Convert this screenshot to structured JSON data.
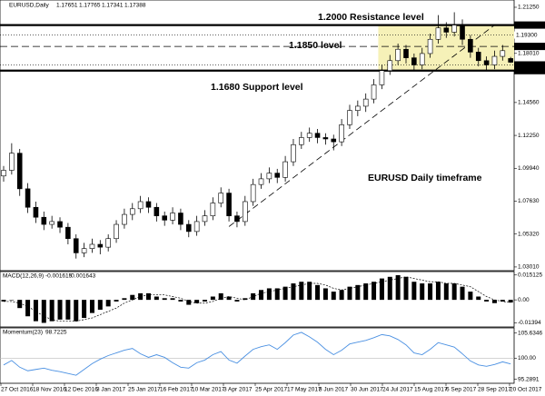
{
  "chart_data": [
    {
      "type": "candlestick",
      "title": "EURUSD,Daily",
      "ylim": [
        1.0275,
        1.2176
      ],
      "yticks": [
        {
          "value": 1.2125,
          "label": "1.21250"
        },
        {
          "value": 1.1801,
          "label": "1.18010"
        },
        {
          "value": 1.1456,
          "label": "1.14560"
        },
        {
          "value": 1.1225,
          "label": "1.12250"
        },
        {
          "value": 1.0994,
          "label": "1.09940"
        },
        {
          "value": 1.0763,
          "label": "1.07630"
        },
        {
          "value": 1.0532,
          "label": "1.05320"
        },
        {
          "value": 1.0301,
          "label": "1.03010"
        }
      ],
      "levels": [
        {
          "value": 1.2,
          "label": "1.20000",
          "style": "solid"
        },
        {
          "value": 1.193,
          "label": "1.19300",
          "style": "dotted"
        },
        {
          "value": 1.185,
          "label": "1.18500",
          "style": "dashed"
        },
        {
          "value": 1.172,
          "label": "1.17200",
          "style": "dotted"
        },
        {
          "value": 1.168,
          "label": "1.16800",
          "style": "solid"
        }
      ],
      "zone": {
        "ylim": [
          1.168,
          1.2
        ],
        "from": 47,
        "color": "#f6f1b8"
      },
      "trendline": {
        "x": [
          28,
          61
        ],
        "y": [
          1.0585,
          1.2
        ]
      },
      "annotations": [
        "1.2000 Resistance level",
        "1.1850 level",
        "1.1680 Support level",
        "EURUSD Daily timeframe"
      ],
      "candles": [
        [
          1.094,
          1.101,
          1.09,
          1.098
        ],
        [
          1.098,
          1.117,
          1.095,
          1.11
        ],
        [
          1.11,
          1.113,
          1.08,
          1.085
        ],
        [
          1.085,
          1.089,
          1.068,
          1.072
        ],
        [
          1.072,
          1.076,
          1.061,
          1.065
        ],
        [
          1.065,
          1.069,
          1.056,
          1.06
        ],
        [
          1.06,
          1.066,
          1.057,
          1.062
        ],
        [
          1.062,
          1.065,
          1.054,
          1.058
        ],
        [
          1.058,
          1.061,
          1.046,
          1.05
        ],
        [
          1.05,
          1.053,
          1.036,
          1.04
        ],
        [
          1.04,
          1.047,
          1.037,
          1.043
        ],
        [
          1.043,
          1.05,
          1.04,
          1.046
        ],
        [
          1.046,
          1.049,
          1.039,
          1.044
        ],
        [
          1.044,
          1.053,
          1.041,
          1.05
        ],
        [
          1.05,
          1.063,
          1.047,
          1.06
        ],
        [
          1.06,
          1.071,
          1.057,
          1.067
        ],
        [
          1.067,
          1.075,
          1.063,
          1.071
        ],
        [
          1.071,
          1.08,
          1.068,
          1.076
        ],
        [
          1.076,
          1.079,
          1.068,
          1.072
        ],
        [
          1.072,
          1.075,
          1.062,
          1.066
        ],
        [
          1.066,
          1.069,
          1.059,
          1.063
        ],
        [
          1.063,
          1.072,
          1.06,
          1.068
        ],
        [
          1.068,
          1.071,
          1.056,
          1.06
        ],
        [
          1.06,
          1.063,
          1.051,
          1.055
        ],
        [
          1.055,
          1.066,
          1.052,
          1.062
        ],
        [
          1.062,
          1.07,
          1.059,
          1.066
        ],
        [
          1.066,
          1.079,
          1.063,
          1.075
        ],
        [
          1.075,
          1.086,
          1.072,
          1.082
        ],
        [
          1.082,
          1.085,
          1.062,
          1.066
        ],
        [
          1.066,
          1.069,
          1.058,
          1.062
        ],
        [
          1.062,
          1.08,
          1.059,
          1.076
        ],
        [
          1.076,
          1.092,
          1.073,
          1.088
        ],
        [
          1.088,
          1.096,
          1.085,
          1.092
        ],
        [
          1.092,
          1.1,
          1.089,
          1.096
        ],
        [
          1.096,
          1.099,
          1.089,
          1.093
        ],
        [
          1.093,
          1.108,
          1.09,
          1.104
        ],
        [
          1.104,
          1.12,
          1.101,
          1.116
        ],
        [
          1.116,
          1.125,
          1.113,
          1.121
        ],
        [
          1.121,
          1.128,
          1.118,
          1.124
        ],
        [
          1.124,
          1.127,
          1.117,
          1.121
        ],
        [
          1.121,
          1.124,
          1.116,
          1.12
        ],
        [
          1.12,
          1.123,
          1.112,
          1.118
        ],
        [
          1.118,
          1.134,
          1.115,
          1.13
        ],
        [
          1.13,
          1.144,
          1.127,
          1.14
        ],
        [
          1.14,
          1.147,
          1.136,
          1.143
        ],
        [
          1.143,
          1.152,
          1.139,
          1.148
        ],
        [
          1.148,
          1.162,
          1.145,
          1.158
        ],
        [
          1.158,
          1.172,
          1.155,
          1.168
        ],
        [
          1.168,
          1.179,
          1.165,
          1.175
        ],
        [
          1.175,
          1.187,
          1.172,
          1.183
        ],
        [
          1.183,
          1.186,
          1.173,
          1.177
        ],
        [
          1.177,
          1.18,
          1.168,
          1.172
        ],
        [
          1.172,
          1.184,
          1.169,
          1.18
        ],
        [
          1.18,
          1.194,
          1.177,
          1.19
        ],
        [
          1.19,
          1.207,
          1.187,
          1.198
        ],
        [
          1.198,
          1.202,
          1.191,
          1.195
        ],
        [
          1.195,
          1.209,
          1.192,
          1.2
        ],
        [
          1.2,
          1.204,
          1.186,
          1.19
        ],
        [
          1.19,
          1.193,
          1.177,
          1.181
        ],
        [
          1.181,
          1.184,
          1.171,
          1.175
        ],
        [
          1.175,
          1.178,
          1.168,
          1.172
        ],
        [
          1.172,
          1.182,
          1.169,
          1.178
        ],
        [
          1.178,
          1.186,
          1.175,
          1.182
        ],
        [
          1.17651,
          1.17765,
          1.17341,
          1.17388
        ]
      ]
    },
    {
      "type": "macd",
      "title": "MACD(12,26,9)",
      "ylim": [
        -0.0165,
        0.0172
      ],
      "yticks": [
        0.015125,
        {
          "value": 0,
          "label": "0.00"
        },
        -0.01394
      ],
      "values": [
        -0.001,
        0.0,
        -0.005,
        -0.01,
        -0.013,
        -0.014,
        -0.013,
        -0.012,
        -0.012,
        -0.013,
        -0.011,
        -0.008,
        -0.006,
        -0.004,
        -0.001,
        0.001,
        0.003,
        0.004,
        0.004,
        0.002,
        0.001,
        0.001,
        -0.001,
        -0.003,
        -0.002,
        -0.001,
        0.002,
        0.004,
        0.002,
        -0.001,
        0.001,
        0.004,
        0.006,
        0.007,
        0.007,
        0.008,
        0.01,
        0.011,
        0.011,
        0.009,
        0.007,
        0.005,
        0.006,
        0.008,
        0.009,
        0.01,
        0.011,
        0.013,
        0.014,
        0.015,
        0.014,
        0.011,
        0.01,
        0.01,
        0.011,
        0.01,
        0.01,
        0.008,
        0.005,
        0.002,
        -0.001,
        -0.002,
        -0.001,
        -0.001615
      ],
      "signal": [
        -0.001,
        -0.001,
        -0.002,
        -0.004,
        -0.007,
        -0.01,
        -0.012,
        -0.013,
        -0.013,
        -0.013,
        -0.012,
        -0.011,
        -0.009,
        -0.007,
        -0.005,
        -0.002,
        0.0,
        0.002,
        0.003,
        0.003,
        0.003,
        0.002,
        0.001,
        -0.001,
        -0.002,
        -0.002,
        -0.001,
        0.001,
        0.002,
        0.001,
        0.0,
        0.002,
        0.004,
        0.005,
        0.006,
        0.007,
        0.008,
        0.009,
        0.01,
        0.01,
        0.009,
        0.007,
        0.006,
        0.007,
        0.008,
        0.009,
        0.01,
        0.011,
        0.012,
        0.013,
        0.014,
        0.013,
        0.012,
        0.011,
        0.011,
        0.01,
        0.01,
        0.009,
        0.008,
        0.005,
        0.002,
        0.0,
        -0.001,
        -0.001643
      ]
    },
    {
      "type": "line",
      "title": "Momentum(23)",
      "color": "#4a90e2",
      "ylim": [
        94.4,
        106.8
      ],
      "yticks": [
        105.6346,
        {
          "value": 100,
          "label": "100.00"
        },
        95.2891
      ],
      "values": [
        98.5,
        99.5,
        98.0,
        97.2,
        97.5,
        97.8,
        97.3,
        97.0,
        96.6,
        96.2,
        97.5,
        98.8,
        99.8,
        100.6,
        101.2,
        101.8,
        102.2,
        101.0,
        100.2,
        100.8,
        100.2,
        99.0,
        98.0,
        97.8,
        99.0,
        99.6,
        100.8,
        101.5,
        99.6,
        98.9,
        100.5,
        102.0,
        102.6,
        103.0,
        102.0,
        103.5,
        105.2,
        105.8,
        104.8,
        103.6,
        102.0,
        100.8,
        101.8,
        103.2,
        103.6,
        104.0,
        104.6,
        105.3,
        105.0,
        104.2,
        103.0,
        101.2,
        100.8,
        102.0,
        103.5,
        103.0,
        102.5,
        101.0,
        99.4,
        98.5,
        98.2,
        98.6,
        99.2,
        98.7225
      ],
      "x_labels": [
        "27 Oct 2016",
        "18 Nov 2016",
        "12 Dec 2016",
        "3 Jan 2017",
        "25 Jan 2017",
        "16 Feb 2017",
        "10 Mar 2017",
        "3 Apr 2017",
        "25 Apr 2017",
        "17 May 2017",
        "8 Jun 2017",
        "30 Jun 2017",
        "24 Jul 2017",
        "15 Aug 2017",
        "6 Sep 2017",
        "28 Sep 2017",
        "20 Oct 2017"
      ]
    }
  ]
}
